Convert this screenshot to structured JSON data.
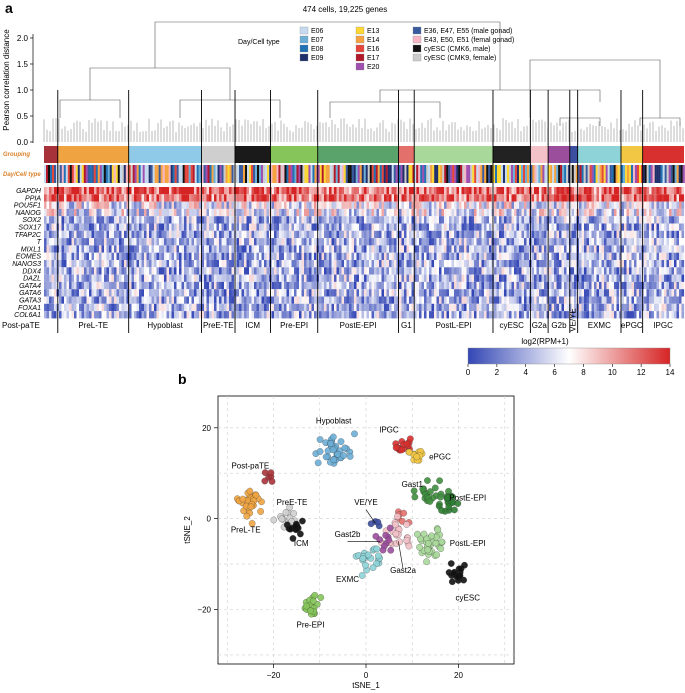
{
  "panel_a": {
    "label": "a",
    "title": "474 cells,  19,225 genes",
    "y_axis_label": "Pearson correlation distance",
    "y_ticks": [
      "2.0",
      "1.5",
      "1.0",
      "0.5",
      "0.0"
    ],
    "y_tick_values": [
      2.0,
      1.5,
      1.0,
      0.5,
      0.0
    ],
    "row_label_grouping": "Grouping",
    "row_label_daycell": "Day/Cell type",
    "legend_title": "Day/Cell type",
    "legend_items": [
      {
        "label": "E06",
        "color": "#c6dbef"
      },
      {
        "label": "E07",
        "color": "#6baed6"
      },
      {
        "label": "E08",
        "color": "#2171b5"
      },
      {
        "label": "E09",
        "color": "#1f2f6b"
      },
      {
        "label": "E13",
        "color": "#fdd835"
      },
      {
        "label": "E14",
        "color": "#f4a340"
      },
      {
        "label": "E16",
        "color": "#e6453a"
      },
      {
        "label": "E17",
        "color": "#b2182b"
      },
      {
        "label": "E20",
        "color": "#9e4fb0"
      },
      {
        "label": "E36, E47, E55 (male gonad)",
        "color": "#3a5a9e"
      },
      {
        "label": "E43, E50, E51 (femal gonad)",
        "color": "#f6b6c5"
      },
      {
        "label": "cyESC (CMK6, male)",
        "color": "#111111"
      },
      {
        "label": "cyESC (CMK9, female)",
        "color": "#cccccc"
      }
    ],
    "genes": [
      "GAPDH",
      "PPIA",
      "POU5F1",
      "NANOG",
      "SOX2",
      "SOX17",
      "TFAP2C",
      "T",
      "MIXL1",
      "EOMES",
      "NANOS3",
      "DDX4",
      "DAZL",
      "GATA4",
      "GATA6",
      "GATA3",
      "FOXA1",
      "COL6A1"
    ],
    "groups": [
      {
        "label": "Post-paTE",
        "color": "#a8323a"
      },
      {
        "label": "PreL-TE",
        "color": "#f0a441"
      },
      {
        "label": "Hypoblast",
        "color": "#8fcbe8"
      },
      {
        "label": "PreE-TE",
        "color": "#cfcfcf"
      },
      {
        "label": "ICM",
        "color": "#1a1a1a"
      },
      {
        "label": "Pre-EPI",
        "color": "#86c55a"
      },
      {
        "label": "PostE-EPI",
        "color": "#5aa36a"
      },
      {
        "label": "G1",
        "color": "#e3706a"
      },
      {
        "label": "PostL-EPI",
        "color": "#a8d89a"
      },
      {
        "label": "cyESC",
        "color": "#222222"
      },
      {
        "label": "G2a",
        "color": "#f3c1c8"
      },
      {
        "label": "G2b",
        "color": "#9b4e9c"
      },
      {
        "label": "VE/YE",
        "color": "#3b4ea0"
      },
      {
        "label": "EXMC",
        "color": "#8dd3d7"
      },
      {
        "label": "ePGC",
        "color": "#f2c744"
      },
      {
        "label": "lPGC",
        "color": "#d7302f"
      }
    ],
    "colorbar": {
      "label": "log2(RPM+1)",
      "ticks": [
        "0",
        "2",
        "4",
        "6",
        "8",
        "10",
        "12",
        "14"
      ],
      "tick_values": [
        0,
        2,
        4,
        6,
        8,
        10,
        12,
        14
      ],
      "low_color": "#3346b5",
      "mid_color": "#ffffff",
      "high_color": "#d62424"
    }
  },
  "chart_data": {
    "type": "scatter",
    "panel_label": "b",
    "xlabel": "tSNE_1",
    "ylabel": "tSNE_2",
    "xlim": [
      -32,
      32
    ],
    "ylim": [
      -32,
      27
    ],
    "x_ticks": [
      -20,
      0,
      20
    ],
    "x_tick_labels": [
      "−20",
      "0",
      "20"
    ],
    "y_ticks": [
      20,
      0,
      -20
    ],
    "y_tick_labels": [
      "20",
      "0",
      "−20"
    ],
    "grid": true,
    "clusters": [
      {
        "name": "Hypoblast",
        "label": "Hypoblast",
        "color": "#6baed6",
        "center": [
          -7,
          15
        ],
        "n": 38,
        "spread": 2.6,
        "label_pos": [
          -7,
          21
        ]
      },
      {
        "name": "lPGC",
        "label": "lPGC",
        "color": "#d7302f",
        "center": [
          8,
          16
        ],
        "n": 16,
        "spread": 1.4,
        "label_pos": [
          5,
          19
        ]
      },
      {
        "name": "ePGC",
        "label": "ePGC",
        "color": "#f2c744",
        "center": [
          11,
          14
        ],
        "n": 12,
        "spread": 1.3,
        "label_pos": [
          16,
          13
        ]
      },
      {
        "name": "Post-paTE",
        "label": "Post-paTE",
        "color": "#a8323a",
        "center": [
          -21,
          9
        ],
        "n": 6,
        "spread": 0.9,
        "label_pos": [
          -25,
          11
        ]
      },
      {
        "name": "PreL-TE",
        "label": "PreL-TE",
        "color": "#f0a441",
        "center": [
          -25,
          3
        ],
        "n": 34,
        "spread": 2.0,
        "label_pos": [
          -26,
          -3
        ]
      },
      {
        "name": "PreE-TE",
        "label": "PreE-TE",
        "color": "#cfcfcf",
        "center": [
          -17,
          0
        ],
        "n": 14,
        "spread": 1.5,
        "label_pos": [
          -16,
          3
        ]
      },
      {
        "name": "ICM",
        "label": "ICM",
        "color": "#111111",
        "center": [
          -15,
          -2
        ],
        "n": 14,
        "spread": 1.3,
        "label_pos": [
          -14,
          -6
        ]
      },
      {
        "name": "Gast1",
        "label": "Gast1",
        "color": "#3f8f3f",
        "center": [
          14,
          5
        ],
        "n": 22,
        "spread": 2.0,
        "label_pos": [
          10,
          7
        ]
      },
      {
        "name": "PostE-EPI",
        "label": "PostE-EPI",
        "color": "#2e7d32",
        "center": [
          18,
          3
        ],
        "n": 16,
        "spread": 1.7,
        "label_pos": [
          22,
          4
        ]
      },
      {
        "name": "PostL-EPI",
        "label": "PostL-EPI",
        "color": "#a8d89a",
        "center": [
          14,
          -5
        ],
        "n": 34,
        "spread": 2.4,
        "label_pos": [
          22,
          -6
        ]
      },
      {
        "name": "VE/YE",
        "label": "VE/YE",
        "color": "#3b4ea0",
        "center": [
          2,
          -1
        ],
        "n": 4,
        "spread": 0.8,
        "label_pos": [
          0,
          3
        ]
      },
      {
        "name": "G1",
        "label": "",
        "color": "#e3706a",
        "center": [
          8,
          0
        ],
        "n": 6,
        "spread": 1.2,
        "label_pos": [
          8,
          0
        ]
      },
      {
        "name": "Gast2a",
        "label": "Gast2a",
        "color": "#f3c1c8",
        "center": [
          7,
          -4
        ],
        "n": 22,
        "spread": 2.2,
        "label_pos": [
          8,
          -12
        ]
      },
      {
        "name": "Gast2b",
        "label": "Gast2b",
        "color": "#9b4e9c",
        "center": [
          4,
          -5
        ],
        "n": 10,
        "spread": 1.6,
        "label_pos": [
          -4,
          -4
        ]
      },
      {
        "name": "EXMC",
        "label": "EXMC",
        "color": "#8dd3d7",
        "center": [
          1,
          -9
        ],
        "n": 22,
        "spread": 2.0,
        "label_pos": [
          -4,
          -14
        ]
      },
      {
        "name": "cyESC",
        "label": "cyESC",
        "color": "#111111",
        "center": [
          20,
          -12
        ],
        "n": 16,
        "spread": 1.6,
        "label_pos": [
          22,
          -18
        ]
      },
      {
        "name": "Pre-EPI",
        "label": "Pre-EPI",
        "color": "#86c55a",
        "center": [
          -12,
          -19
        ],
        "n": 22,
        "spread": 1.6,
        "label_pos": [
          -12,
          -24
        ]
      }
    ]
  }
}
